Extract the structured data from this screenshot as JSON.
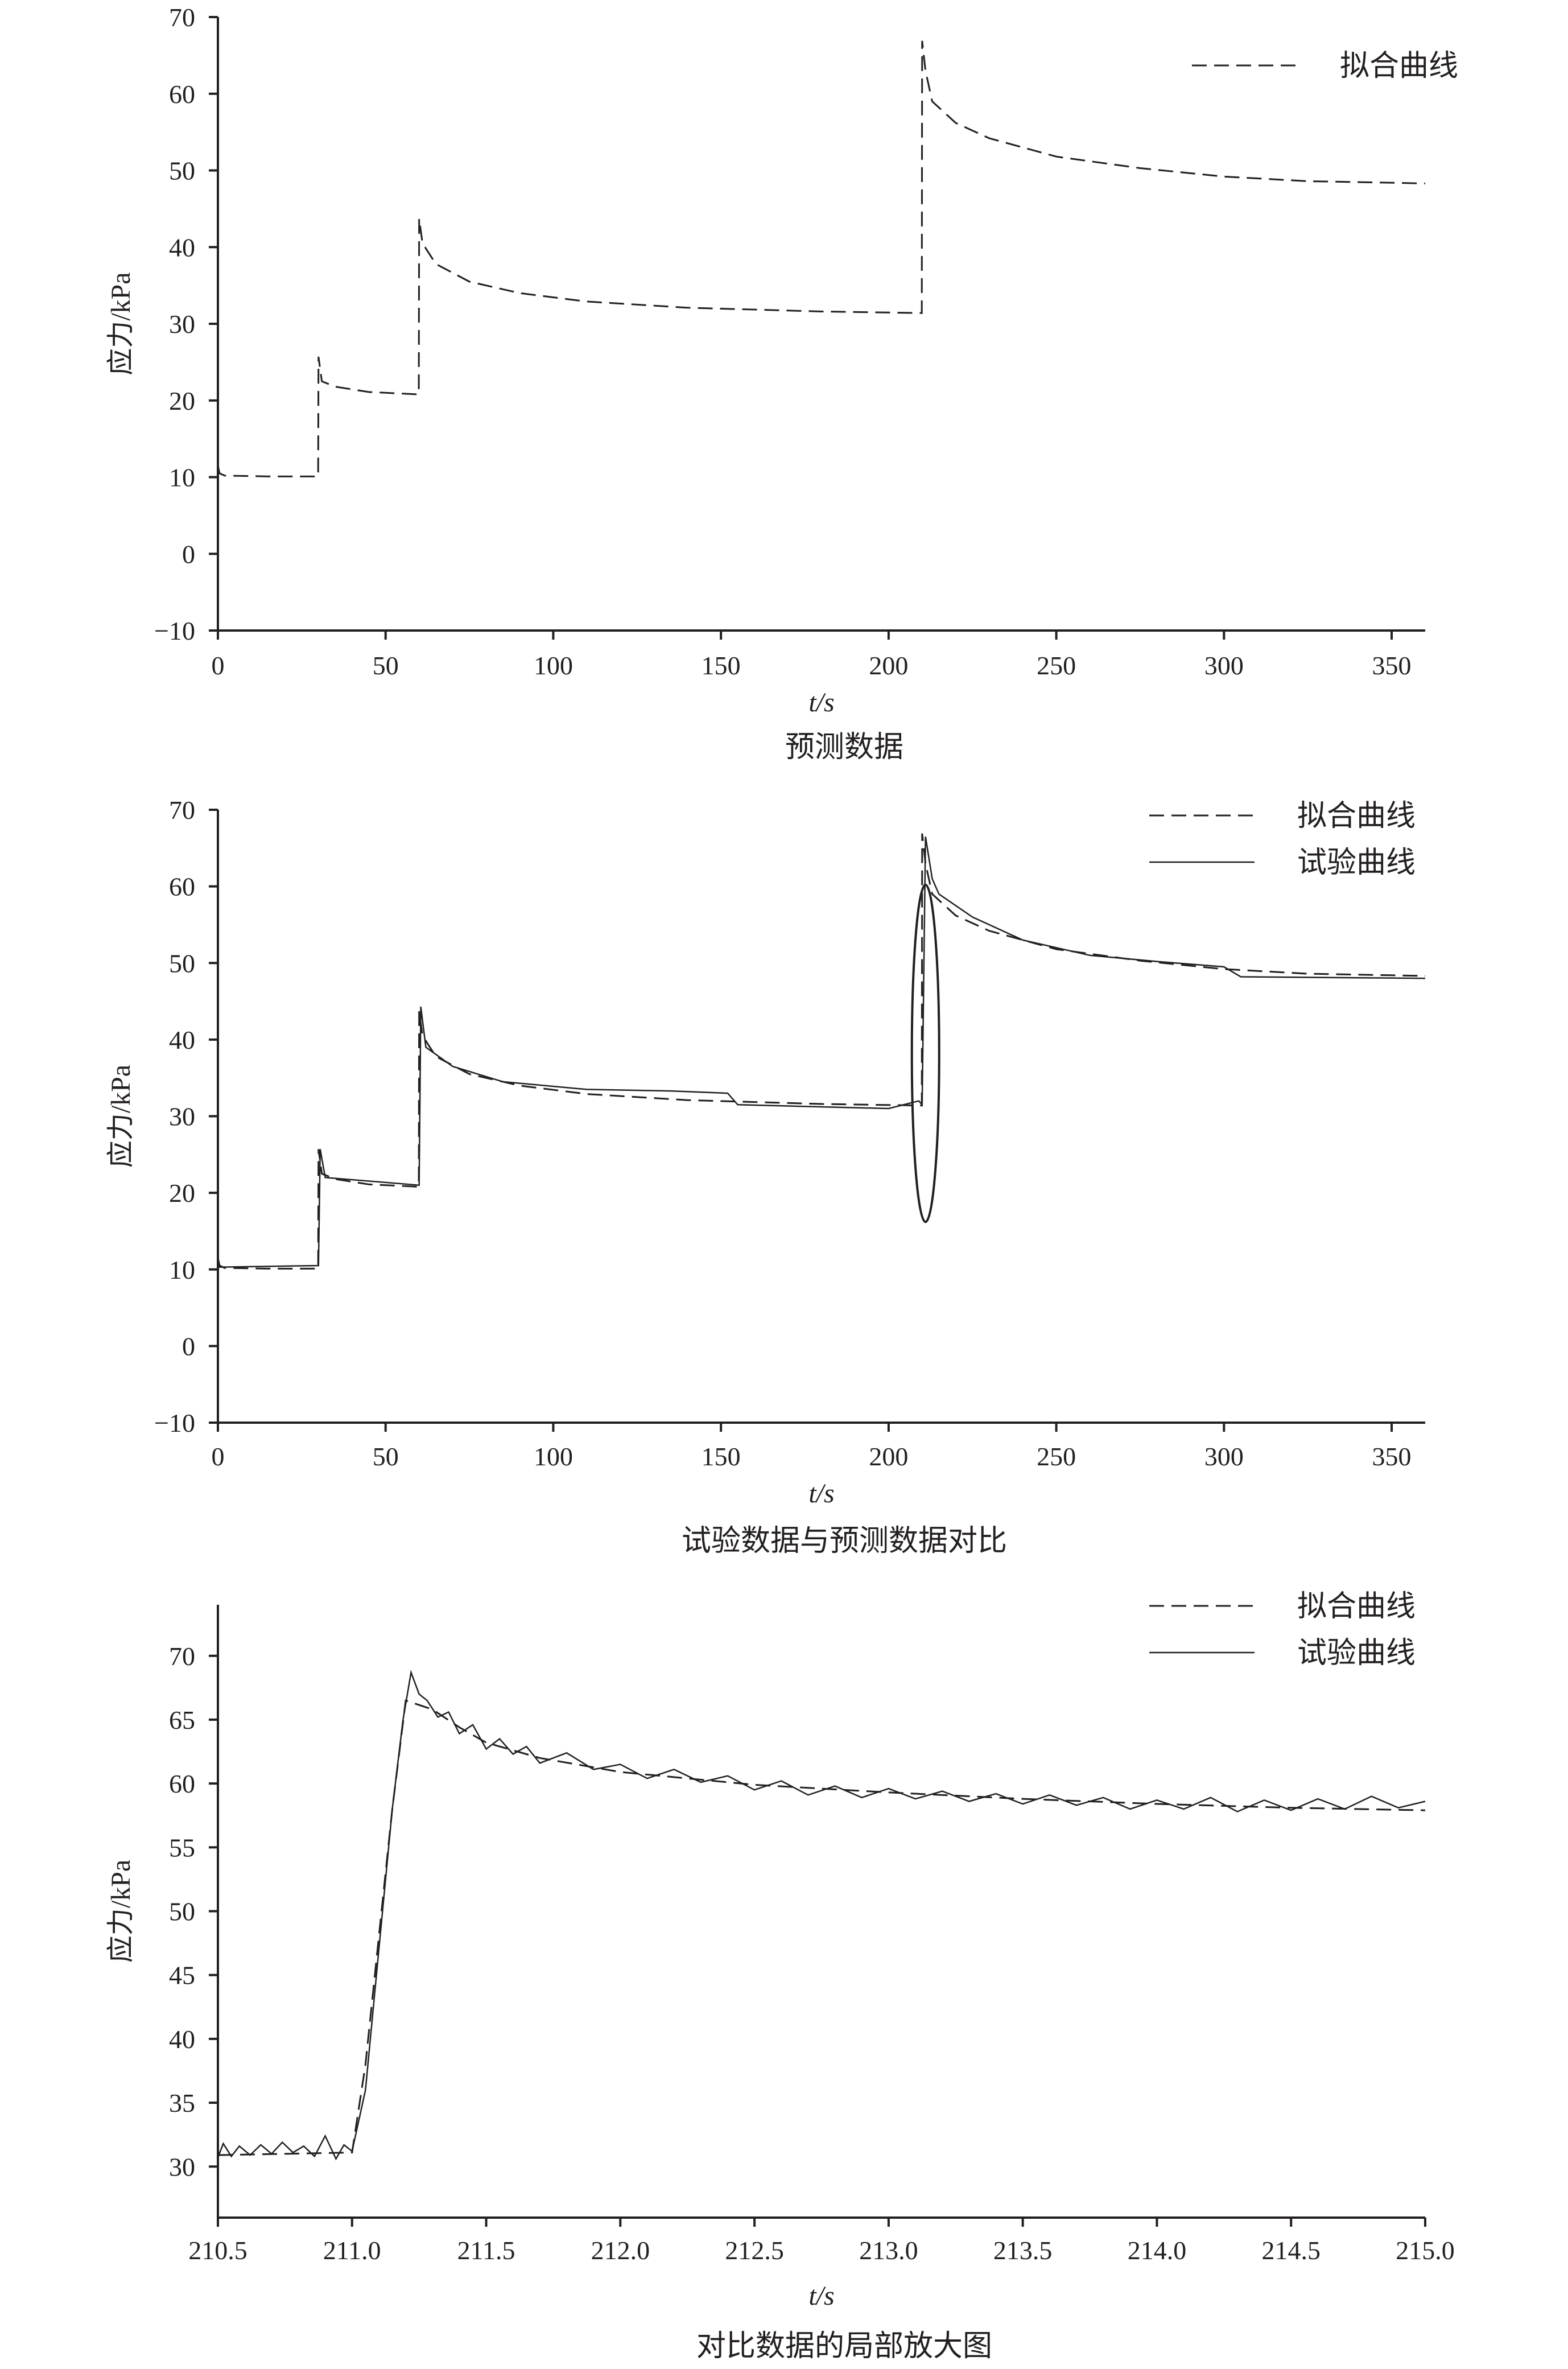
{
  "chart_data": [
    {
      "type": "line",
      "caption": "预测数据",
      "xlabel": "t/s",
      "ylabel": "应力/kPa",
      "xlim": [
        0,
        360
      ],
      "ylim": [
        -10,
        70
      ],
      "x_ticks": [
        "0",
        "50",
        "100",
        "150",
        "200",
        "250",
        "300",
        "350"
      ],
      "y_ticks": [
        "−10",
        "0",
        "10",
        "20",
        "30",
        "40",
        "50",
        "60",
        "70"
      ],
      "legend_position": "top-right",
      "legend": [
        "拟合曲线"
      ],
      "series": [
        {
          "name": "拟合曲线",
          "style": "dashed",
          "points": [
            [
              0,
              11.5
            ],
            [
              0.5,
              10.5
            ],
            [
              2,
              10.2
            ],
            [
              15,
              10.1
            ],
            [
              29.9,
              10.1
            ],
            [
              30,
              25.7
            ],
            [
              31,
              22.5
            ],
            [
              35,
              21.8
            ],
            [
              45,
              21.1
            ],
            [
              59.9,
              20.8
            ],
            [
              60,
              43.7
            ],
            [
              61,
              40.5
            ],
            [
              65,
              37.8
            ],
            [
              75,
              35.5
            ],
            [
              90,
              34
            ],
            [
              110,
              32.9
            ],
            [
              140,
              32.1
            ],
            [
              180,
              31.6
            ],
            [
              209.9,
              31.4
            ],
            [
              210,
              66.9
            ],
            [
              211,
              63
            ],
            [
              213,
              59
            ],
            [
              220,
              56.2
            ],
            [
              230,
              54.2
            ],
            [
              250,
              51.8
            ],
            [
              275,
              50.3
            ],
            [
              300,
              49.2
            ],
            [
              325,
              48.6
            ],
            [
              350,
              48.4
            ],
            [
              360,
              48.3
            ]
          ]
        }
      ]
    },
    {
      "type": "line",
      "caption": "试验数据与预测数据对比",
      "xlabel": "t/s",
      "ylabel": "应力/kPa",
      "xlim": [
        0,
        360
      ],
      "ylim": [
        -10,
        70
      ],
      "x_ticks": [
        "0",
        "50",
        "100",
        "150",
        "200",
        "250",
        "300",
        "350"
      ],
      "y_ticks": [
        "−10",
        "0",
        "10",
        "20",
        "30",
        "40",
        "50",
        "60",
        "70"
      ],
      "legend_position": "top-right",
      "legend": [
        "拟合曲线",
        "试验曲线"
      ],
      "annotation": "ellipse around t≈210 s",
      "series": [
        {
          "name": "拟合曲线",
          "style": "dashed",
          "points": [
            [
              0,
              11.5
            ],
            [
              0.5,
              10.5
            ],
            [
              2,
              10.2
            ],
            [
              15,
              10.1
            ],
            [
              29.9,
              10.1
            ],
            [
              30,
              25.7
            ],
            [
              31,
              22.5
            ],
            [
              35,
              21.8
            ],
            [
              45,
              21.1
            ],
            [
              59.9,
              20.8
            ],
            [
              60,
              43.7
            ],
            [
              61,
              40.5
            ],
            [
              65,
              37.8
            ],
            [
              75,
              35.5
            ],
            [
              90,
              34
            ],
            [
              110,
              32.9
            ],
            [
              140,
              32.1
            ],
            [
              180,
              31.6
            ],
            [
              209.9,
              31.4
            ],
            [
              210,
              66.9
            ],
            [
              211,
              63
            ],
            [
              213,
              59
            ],
            [
              220,
              56.2
            ],
            [
              230,
              54.2
            ],
            [
              250,
              51.8
            ],
            [
              275,
              50.3
            ],
            [
              300,
              49.2
            ],
            [
              325,
              48.6
            ],
            [
              350,
              48.4
            ],
            [
              360,
              48.3
            ]
          ]
        },
        {
          "name": "试验曲线",
          "style": "solid",
          "points": [
            [
              0,
              10.3
            ],
            [
              30,
              10.5
            ],
            [
              30.5,
              25.7
            ],
            [
              32,
              22
            ],
            [
              60,
              21
            ],
            [
              60.5,
              44.3
            ],
            [
              62,
              39
            ],
            [
              70,
              36.5
            ],
            [
              85,
              34.5
            ],
            [
              110,
              33.5
            ],
            [
              135,
              33.3
            ],
            [
              152,
              33
            ],
            [
              155,
              31.5
            ],
            [
              200,
              31
            ],
            [
              209,
              32
            ],
            [
              210,
              31.5
            ],
            [
              211,
              66.5
            ],
            [
              213,
              61
            ],
            [
              215,
              59
            ],
            [
              225,
              56
            ],
            [
              240,
              53
            ],
            [
              260,
              51
            ],
            [
              280,
              50.2
            ],
            [
              300,
              49.5
            ],
            [
              305,
              48.2
            ],
            [
              360,
              48
            ]
          ]
        }
      ]
    },
    {
      "type": "line",
      "caption": "对比数据的局部放大图",
      "xlabel": "t/s",
      "ylabel": "应力/kPa",
      "xlim": [
        210.5,
        215.0
      ],
      "ylim": [
        26,
        74
      ],
      "x_ticks": [
        "210.5",
        "211.0",
        "211.5",
        "212.0",
        "212.5",
        "213.0",
        "213.5",
        "214.0",
        "214.5",
        "215.0"
      ],
      "y_ticks": [
        "30",
        "35",
        "40",
        "45",
        "50",
        "55",
        "60",
        "65",
        "70"
      ],
      "legend_position": "top-right",
      "legend": [
        "拟合曲线",
        "试验曲线"
      ],
      "series": [
        {
          "name": "拟合曲线",
          "style": "dashed",
          "points": [
            [
              210.5,
              30.9
            ],
            [
              211.0,
              31.1
            ],
            [
              211.05,
              38
            ],
            [
              211.1,
              48
            ],
            [
              211.15,
              58
            ],
            [
              211.2,
              66.5
            ],
            [
              211.3,
              65.8
            ],
            [
              211.4,
              64.4
            ],
            [
              211.5,
              63.2
            ],
            [
              211.7,
              62
            ],
            [
              212.0,
              60.9
            ],
            [
              212.5,
              59.9
            ],
            [
              213.0,
              59.3
            ],
            [
              213.5,
              58.8
            ],
            [
              214.0,
              58.4
            ],
            [
              214.5,
              58.1
            ],
            [
              215.0,
              57.9
            ]
          ]
        },
        {
          "name": "试验曲线",
          "style": "solid",
          "points": [
            [
              210.5,
              30.7
            ],
            [
              210.52,
              31.8
            ],
            [
              210.55,
              30.8
            ],
            [
              210.58,
              31.6
            ],
            [
              210.62,
              30.9
            ],
            [
              210.66,
              31.7
            ],
            [
              210.7,
              31
            ],
            [
              210.74,
              31.9
            ],
            [
              210.78,
              31.1
            ],
            [
              210.82,
              31.6
            ],
            [
              210.86,
              30.8
            ],
            [
              210.9,
              32.4
            ],
            [
              210.94,
              30.6
            ],
            [
              210.97,
              31.7
            ],
            [
              211.0,
              31.2
            ],
            [
              211.05,
              36
            ],
            [
              211.1,
              47
            ],
            [
              211.15,
              58
            ],
            [
              211.19,
              65
            ],
            [
              211.22,
              68.7
            ],
            [
              211.25,
              67
            ],
            [
              211.28,
              66.5
            ],
            [
              211.32,
              65.2
            ],
            [
              211.36,
              65.6
            ],
            [
              211.4,
              63.9
            ],
            [
              211.45,
              64.6
            ],
            [
              211.5,
              62.7
            ],
            [
              211.55,
              63.5
            ],
            [
              211.6,
              62.3
            ],
            [
              211.65,
              62.9
            ],
            [
              211.7,
              61.6
            ],
            [
              211.8,
              62.4
            ],
            [
              211.9,
              61.1
            ],
            [
              212.0,
              61.5
            ],
            [
              212.1,
              60.4
            ],
            [
              212.2,
              61.1
            ],
            [
              212.3,
              60.1
            ],
            [
              212.4,
              60.6
            ],
            [
              212.5,
              59.5
            ],
            [
              212.6,
              60.2
            ],
            [
              212.7,
              59.1
            ],
            [
              212.8,
              59.8
            ],
            [
              212.9,
              58.9
            ],
            [
              213.0,
              59.6
            ],
            [
              213.1,
              58.8
            ],
            [
              213.2,
              59.4
            ],
            [
              213.3,
              58.6
            ],
            [
              213.4,
              59.2
            ],
            [
              213.5,
              58.4
            ],
            [
              213.6,
              59.1
            ],
            [
              213.7,
              58.3
            ],
            [
              213.8,
              58.9
            ],
            [
              213.9,
              58
            ],
            [
              214.0,
              58.7
            ],
            [
              214.1,
              58
            ],
            [
              214.2,
              58.9
            ],
            [
              214.3,
              57.8
            ],
            [
              214.4,
              58.7
            ],
            [
              214.5,
              57.9
            ],
            [
              214.6,
              58.8
            ],
            [
              214.7,
              58
            ],
            [
              214.8,
              59
            ],
            [
              214.9,
              58.1
            ],
            [
              215.0,
              58.6
            ]
          ]
        }
      ]
    }
  ]
}
